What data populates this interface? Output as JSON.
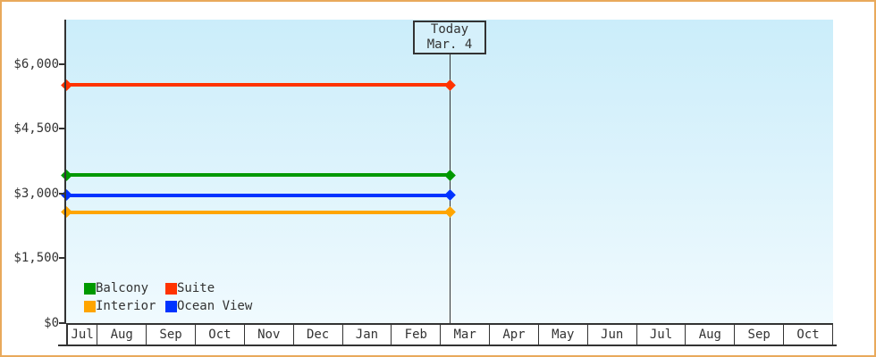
{
  "frame": {
    "border_color": "#E9A95B",
    "background_color": "#FFFFFF",
    "plot_gradient_top": "#CBEDFA",
    "plot_gradient_bottom": "#F0FAFE",
    "axis_color": "#333333"
  },
  "chart_data": {
    "type": "line",
    "title": "",
    "xlabel": "",
    "ylabel": "",
    "description": "Cruise cabin price history: flat price lines per cabin category, solid up to today then dotted projection",
    "x_categories": [
      "Jul",
      "Aug",
      "Sep",
      "Oct",
      "Nov",
      "Dec",
      "Jan",
      "Feb",
      "Mar",
      "Apr",
      "May",
      "Jun",
      "Jul",
      "Aug",
      "Sep",
      "Oct"
    ],
    "first_month_weight": 0.6,
    "y_ticks": [
      {
        "label": "$6,000",
        "value": 6000
      },
      {
        "label": "$4,500",
        "value": 4500
      },
      {
        "label": "$3,000",
        "value": 3000
      },
      {
        "label": "$1,500",
        "value": 1500
      },
      {
        "label": "$0",
        "value": 0
      }
    ],
    "ylim": [
      0,
      7034
    ],
    "axis_max": 6000,
    "series": [
      {
        "name": "Suite",
        "color": "#FF3300",
        "value": 5520
      },
      {
        "name": "Balcony",
        "color": "#009900",
        "value": 3430
      },
      {
        "name": "Ocean View",
        "color": "#0033FF",
        "value": 2960
      },
      {
        "name": "Interior",
        "color": "#FFA500",
        "value": 2570
      }
    ],
    "today": {
      "line1": "Today",
      "line2": "Mar. 4",
      "x_fraction": 0.5
    },
    "legend": {
      "position": "bottom-left",
      "items": [
        {
          "label": "Balcony",
          "color": "#009900"
        },
        {
          "label": "Suite",
          "color": "#FF3300"
        },
        {
          "label": "Interior",
          "color": "#FFA500"
        },
        {
          "label": "Ocean View",
          "color": "#0033FF"
        }
      ]
    },
    "grid": false
  }
}
